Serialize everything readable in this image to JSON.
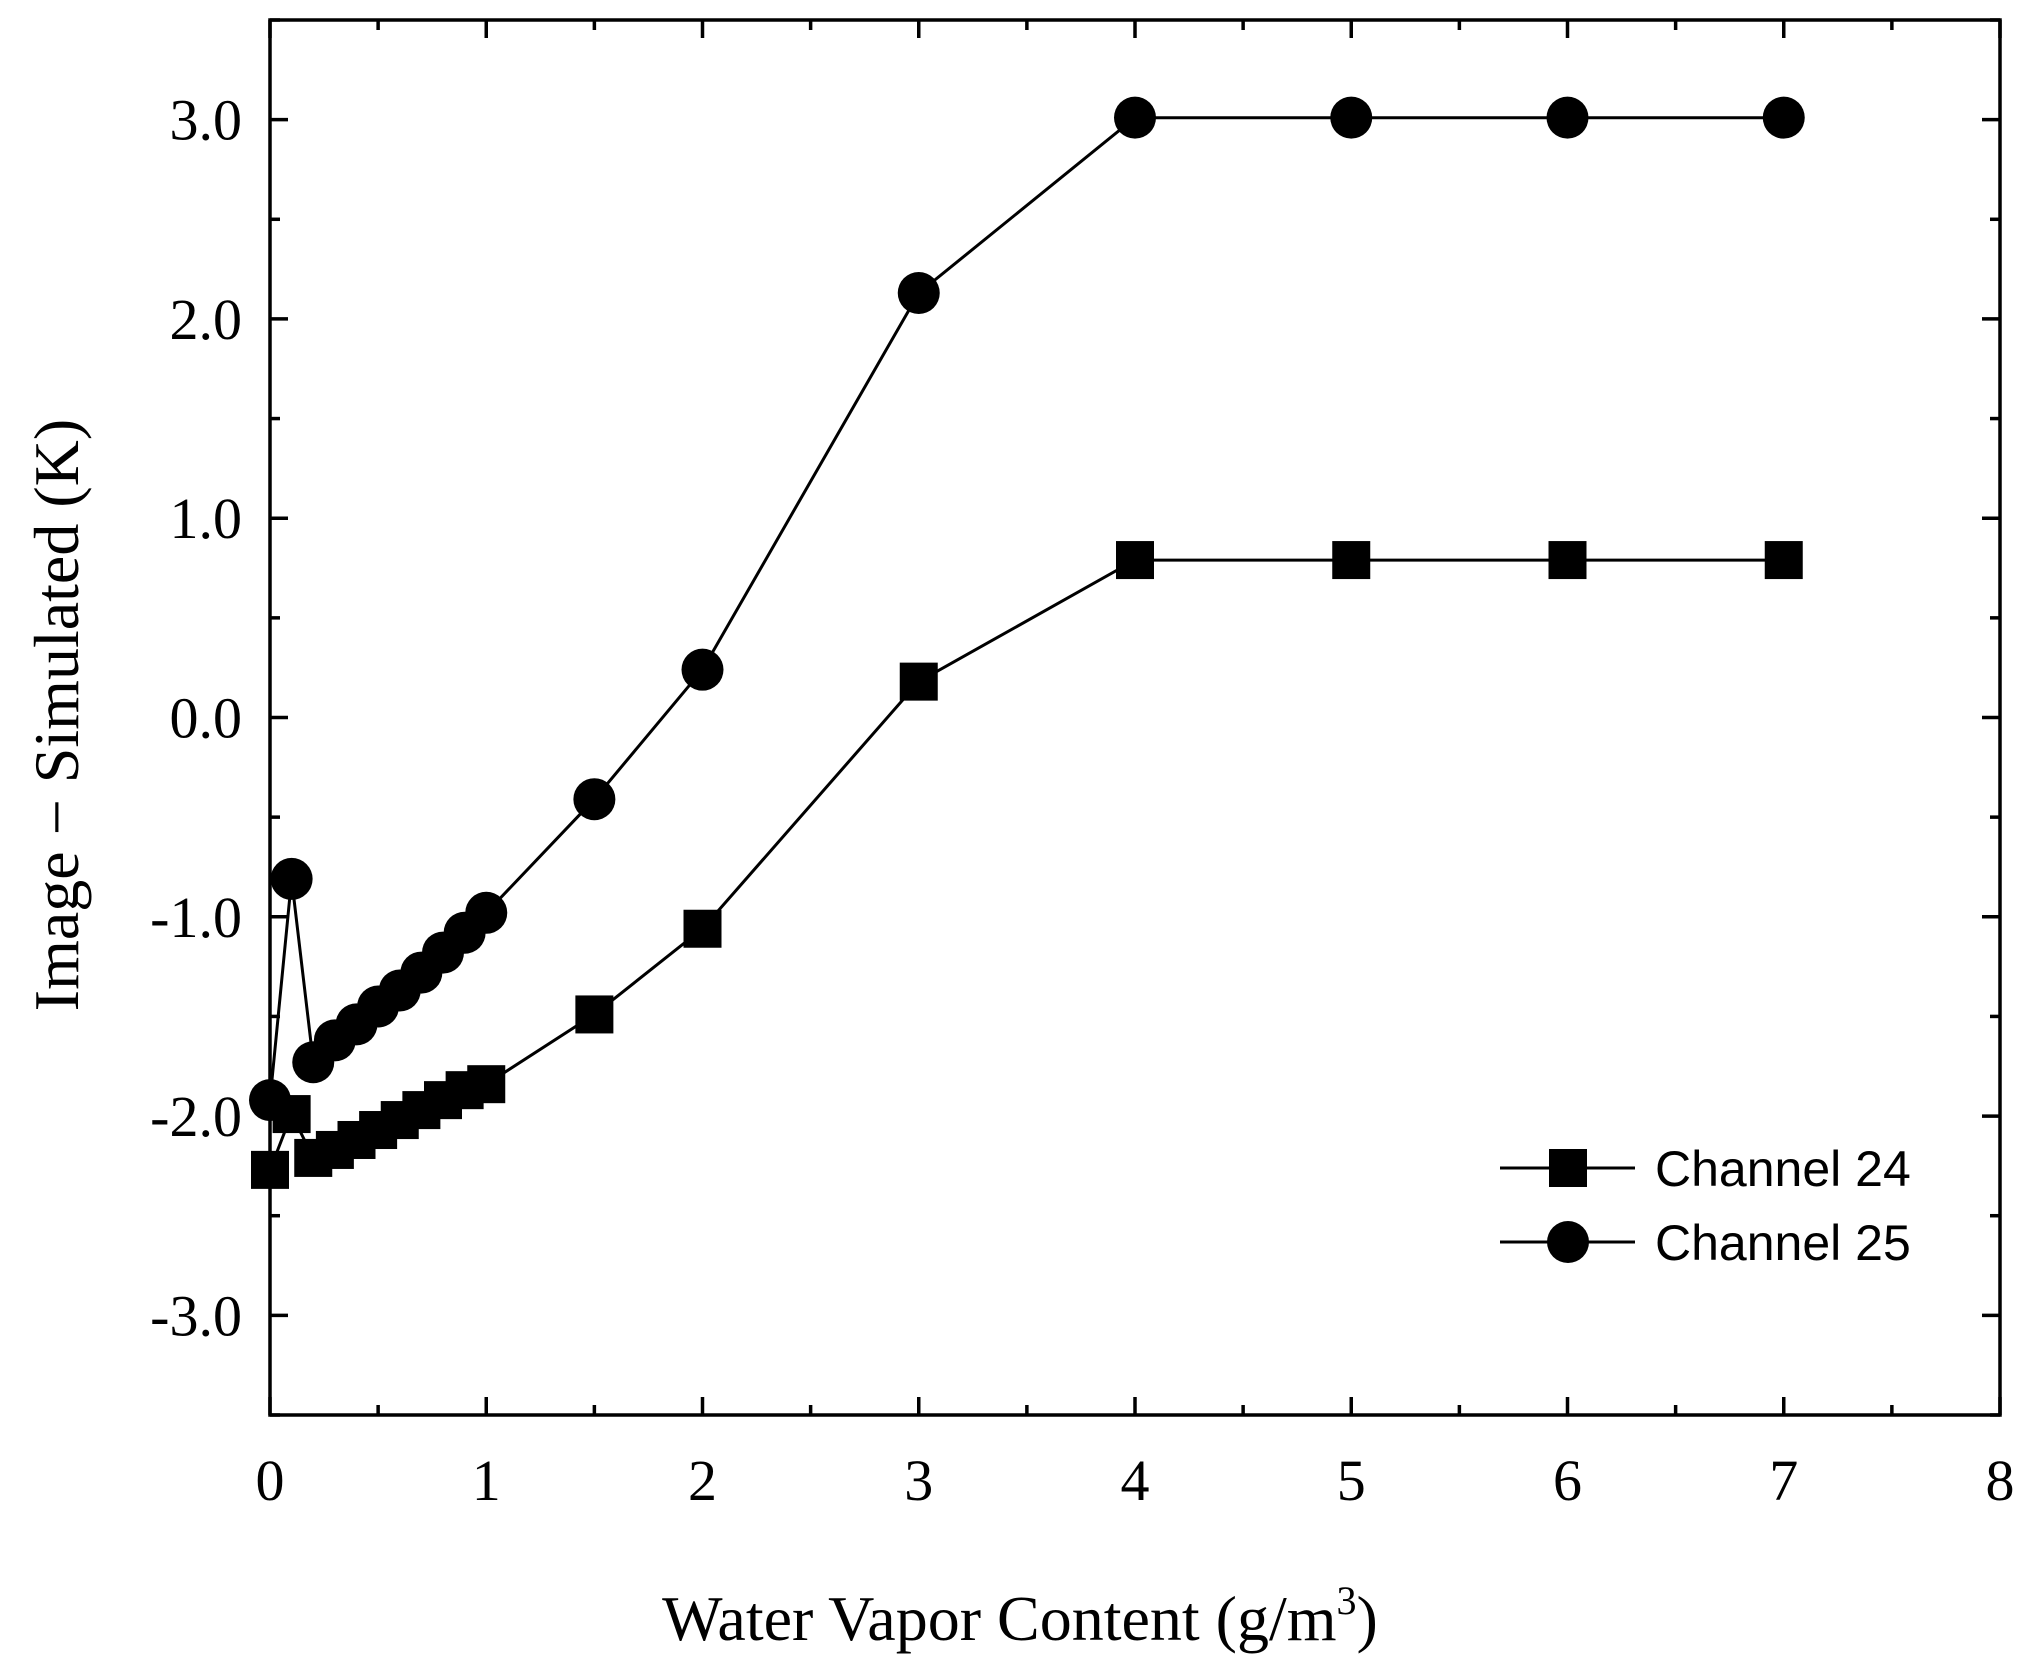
{
  "chart_data": {
    "type": "line",
    "xlabel": "Water Vapor Content (g/m",
    "xlabel_superscript": "3",
    "xlabel_suffix": ")",
    "ylabel": "Image − Simulated (K)",
    "xlim": [
      0,
      8
    ],
    "ylim": [
      -3.5,
      3.5
    ],
    "x_ticks": [
      0,
      1,
      2,
      3,
      4,
      5,
      6,
      7,
      8
    ],
    "x_tick_labels": [
      "0",
      "1",
      "2",
      "3",
      "4",
      "5",
      "6",
      "7",
      "8"
    ],
    "y_ticks": [
      -3,
      -2,
      -1,
      0,
      1,
      2,
      3
    ],
    "y_tick_labels": [
      "-3.0",
      "-2.0",
      "-1.0",
      "0.0",
      "1.0",
      "2.0",
      "3.0"
    ],
    "grid": false,
    "legend_position": "lower-right",
    "series": [
      {
        "name": "Channel 24",
        "marker": "square",
        "x": [
          0,
          0.1,
          0.2,
          0.3,
          0.4,
          0.5,
          0.6,
          0.7,
          0.8,
          0.9,
          1,
          1.5,
          2,
          3,
          4,
          5,
          6,
          7
        ],
        "y": [
          -2.27,
          -1.99,
          -2.21,
          -2.17,
          -2.12,
          -2.07,
          -2.02,
          -1.97,
          -1.92,
          -1.87,
          -1.84,
          -1.49,
          -1.06,
          0.18,
          0.79,
          0.79,
          0.79,
          0.79
        ]
      },
      {
        "name": "Channel 25",
        "marker": "circle",
        "x": [
          0,
          0.1,
          0.2,
          0.3,
          0.4,
          0.5,
          0.6,
          0.7,
          0.8,
          0.9,
          1,
          1.5,
          2,
          3,
          4,
          5,
          6,
          7
        ],
        "y": [
          -1.92,
          -0.81,
          -1.73,
          -1.62,
          -1.54,
          -1.45,
          -1.37,
          -1.28,
          -1.18,
          -1.08,
          -0.98,
          -0.41,
          0.24,
          2.13,
          3.01,
          3.01,
          3.01,
          3.01
        ]
      }
    ]
  }
}
